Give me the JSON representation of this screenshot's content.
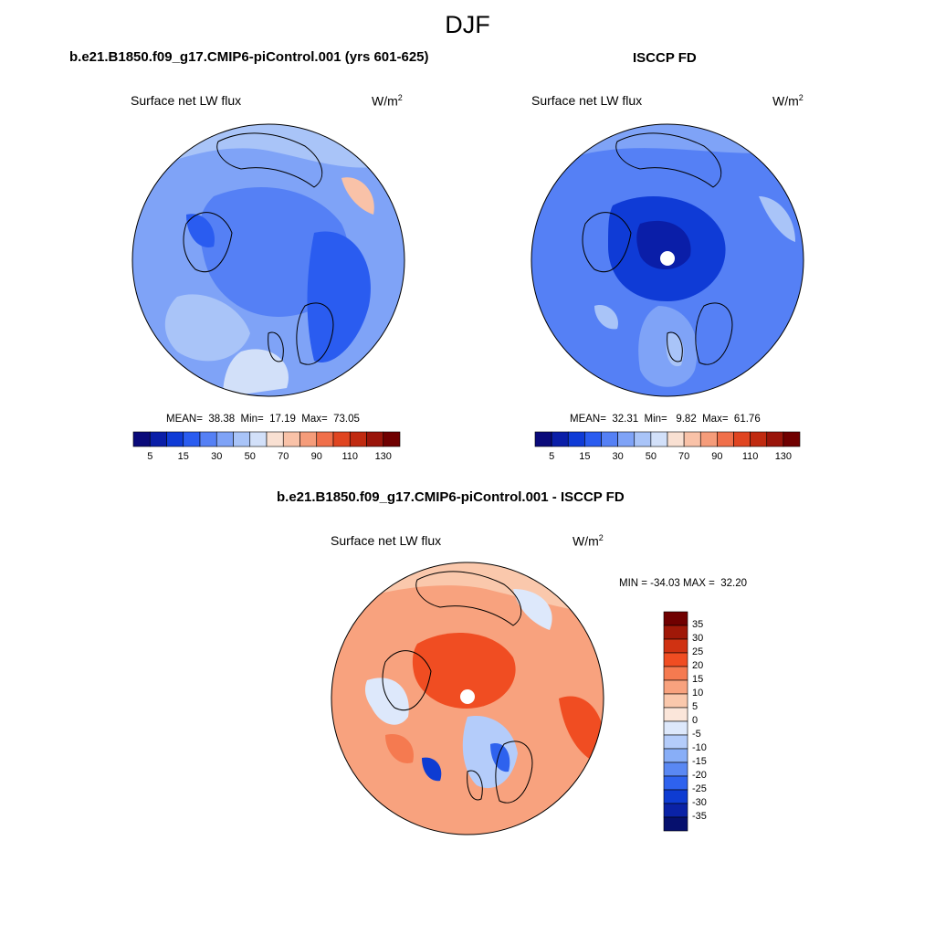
{
  "figure": {
    "title": "DJF"
  },
  "panels": {
    "model": {
      "title": "b.e21.B1850.f09_g17.CMIP6-piControl.001 (yrs 601-625)",
      "variable": "Surface net LW flux",
      "units_base": "W/m",
      "units_exp": "2",
      "stats": "MEAN=  38.38  Min=  17.19  Max=  73.05"
    },
    "obs": {
      "title": "ISCCP FD",
      "variable": "Surface net LW flux",
      "units_base": "W/m",
      "units_exp": "2",
      "stats": "MEAN=  32.31  Min=   9.82  Max=  61.76"
    },
    "diff": {
      "title": "b.e21.B1850.f09_g17.CMIP6-piControl.001 - ISCCP FD",
      "variable": "Surface net LW flux",
      "units_base": "W/m",
      "units_exp": "2",
      "stats": "MIN = -34.03 MAX =  32.20"
    }
  },
  "colorbars": {
    "abs_labels": [
      "5",
      "15",
      "30",
      "50",
      "70",
      "90",
      "110",
      "130"
    ],
    "abs_colors": [
      "#0a0a7a",
      "#0a1ea8",
      "#0f3bd6",
      "#2a5cf0",
      "#5580f5",
      "#7fa3f7",
      "#a9c4f8",
      "#d2e0f9",
      "#f9e0d2",
      "#f9c2a8",
      "#f59c7a",
      "#f06f4a",
      "#e04521",
      "#c02a10",
      "#9a150a",
      "#700000"
    ],
    "diff_labels": [
      "35",
      "30",
      "25",
      "20",
      "15",
      "10",
      "5",
      "0",
      "-5",
      "-10",
      "-15",
      "-20",
      "-25",
      "-30",
      "-35"
    ],
    "diff_colors": [
      "#700000",
      "#a01808",
      "#d03212",
      "#f04d22",
      "#f57a50",
      "#f8a27e",
      "#fac8ac",
      "#fbe6da",
      "#dde8fb",
      "#b4ccfa",
      "#88aef7",
      "#5a88f3",
      "#2e62ee",
      "#0e3cd2",
      "#0a22a6",
      "#06106e"
    ]
  },
  "chart_data": [
    {
      "type": "heatmap",
      "title": "b.e21.B1850.f09_g17.CMIP6-piControl.001 (yrs 601-625)",
      "variable": "Surface net LW flux",
      "units": "W/m2",
      "projection": "north polar stereographic",
      "season": "DJF",
      "mean": 38.38,
      "min": 17.19,
      "max": 73.05,
      "colorbar_ticks": [
        5,
        15,
        30,
        50,
        70,
        90,
        110,
        130
      ]
    },
    {
      "type": "heatmap",
      "title": "ISCCP FD",
      "variable": "Surface net LW flux",
      "units": "W/m2",
      "projection": "north polar stereographic",
      "season": "DJF",
      "mean": 32.31,
      "min": 9.82,
      "max": 61.76,
      "colorbar_ticks": [
        5,
        15,
        30,
        50,
        70,
        90,
        110,
        130
      ]
    },
    {
      "type": "heatmap",
      "title": "b.e21.B1850.f09_g17.CMIP6-piControl.001 - ISCCP FD",
      "variable": "Surface net LW flux",
      "units": "W/m2",
      "projection": "north polar stereographic",
      "season": "DJF",
      "min": -34.03,
      "max": 32.2,
      "colorbar_ticks": [
        35,
        30,
        25,
        20,
        15,
        10,
        5,
        0,
        -5,
        -10,
        -15,
        -20,
        -25,
        -30,
        -35
      ]
    }
  ]
}
